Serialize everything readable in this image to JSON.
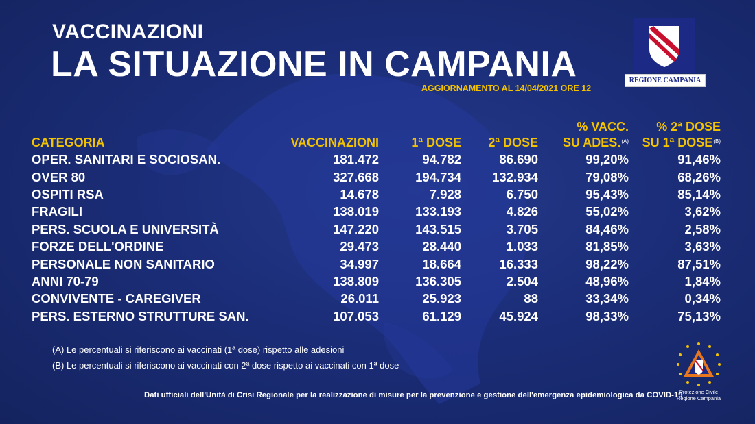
{
  "header": {
    "kicker": "VACCINAZIONI",
    "title": "LA SITUAZIONE IN CAMPANIA",
    "update": "AGGIORNAMENTO AL 14/04/2021 ORE 12"
  },
  "logos": {
    "region_caption": "REGIONE CAMPANIA",
    "civil_protection_line1": "Protezione Civile",
    "civil_protection_line2": "Regione Campania"
  },
  "colors": {
    "background": "#1b2d78",
    "header_accent": "#f2c200",
    "text": "#ffffff"
  },
  "table": {
    "columns": [
      {
        "line1": "CATEGORIA",
        "line2": ""
      },
      {
        "line1": "VACCINAZIONI",
        "line2": ""
      },
      {
        "line1": "1ª DOSE",
        "line2": ""
      },
      {
        "line1": "2ª DOSE",
        "line2": ""
      },
      {
        "line1": "% VACC.",
        "line2": "SU ADES.",
        "note": "(A)"
      },
      {
        "line1": "% 2ª DOSE",
        "line2": "SU 1ª DOSE",
        "note": "(B)"
      }
    ],
    "rows": [
      [
        "OPER. SANITARI E SOCIOSAN.",
        "181.472",
        "94.782",
        "86.690",
        "99,20%",
        "91,46%"
      ],
      [
        "OVER 80",
        "327.668",
        "194.734",
        "132.934",
        "79,08%",
        "68,26%"
      ],
      [
        "OSPITI RSA",
        "14.678",
        "7.928",
        "6.750",
        "95,43%",
        "85,14%"
      ],
      [
        "FRAGILI",
        "138.019",
        "133.193",
        "4.826",
        "55,02%",
        "3,62%"
      ],
      [
        "PERS. SCUOLA E UNIVERSITÀ",
        "147.220",
        "143.515",
        "3.705",
        "84,46%",
        "2,58%"
      ],
      [
        "FORZE DELL'ORDINE",
        "29.473",
        "28.440",
        "1.033",
        "81,85%",
        "3,63%"
      ],
      [
        "PERSONALE NON SANITARIO",
        "34.997",
        "18.664",
        "16.333",
        "98,22%",
        "87,51%"
      ],
      [
        "ANNI 70-79",
        "138.809",
        "136.305",
        "2.504",
        "48,96%",
        "1,84%"
      ],
      [
        "CONVIVENTE - CAREGIVER",
        "26.011",
        "25.923",
        "88",
        "33,34%",
        "0,34%"
      ],
      [
        "PERS. ESTERNO STRUTTURE SAN.",
        "107.053",
        "61.129",
        "45.924",
        "98,33%",
        "75,13%"
      ]
    ]
  },
  "footnotes": {
    "a": "(A) Le percentuali si riferiscono ai vaccinati (1ª dose) rispetto alle adesioni",
    "b": "(B) Le percentuali si riferiscono ai vaccinati con 2ª dose rispetto ai vaccinati con 1ª dose"
  },
  "source": "Dati ufficiali dell'Unità di Crisi Regionale per la realizzazione di misure per la prevenzione e gestione dell'emergenza epidemiologica da COVID-19"
}
